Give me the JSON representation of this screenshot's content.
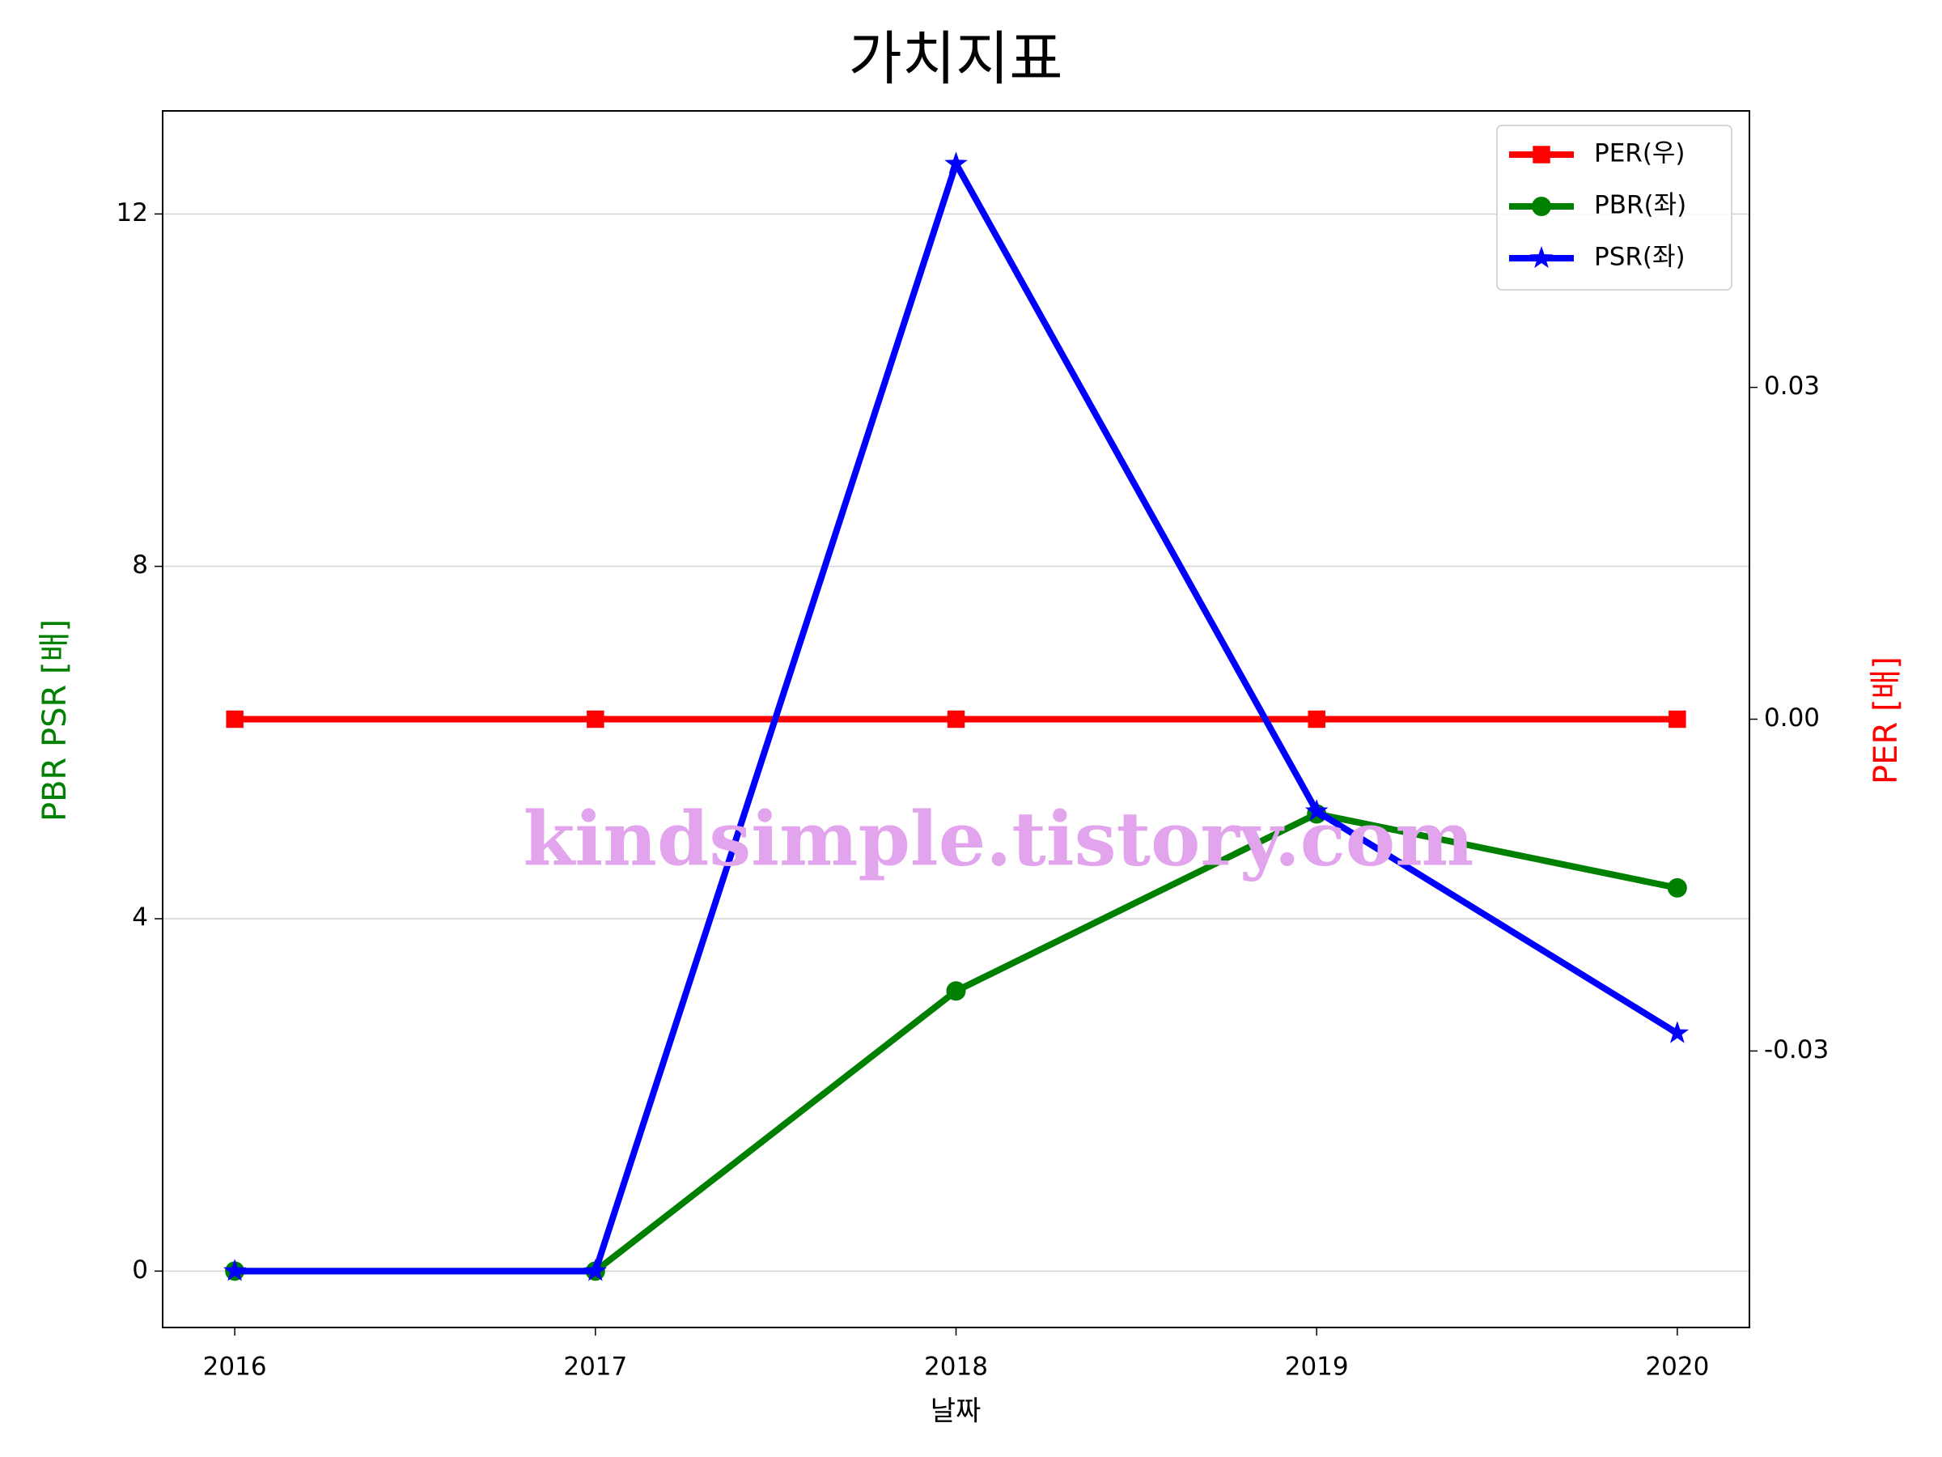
{
  "chart_data": {
    "type": "line",
    "title": "가치지표",
    "x_label": "날짜",
    "y_label": "PBR PSR [배]",
    "y_label_color": "green",
    "y2_label": "PER [배]",
    "y2_label_color": "red",
    "annotation": "kindsimple.tistory.com",
    "annotation_color": "#e2a4ec",
    "x": [
      2016,
      2017,
      2018,
      2019,
      2020
    ],
    "xlim": [
      2015.8,
      2020.2
    ],
    "xticks": [
      2016,
      2017,
      2018,
      2019,
      2020
    ],
    "ylim": [
      -0.64,
      13.17
    ],
    "yticks": [
      0,
      4,
      8,
      12
    ],
    "y2lim": [
      -0.055,
      0.055
    ],
    "y2ticks": [
      -0.03,
      {
        "value": 0,
        "label": "0.00"
      },
      0.03
    ],
    "grid": true,
    "legend": "upper right",
    "series": [
      {
        "name": "PER(우)",
        "color": "red",
        "marker": "square",
        "axis": "y2",
        "values": [
          0,
          0,
          0,
          0,
          0
        ]
      },
      {
        "name": "PBR(좌)",
        "color": "green",
        "marker": "circle",
        "values": [
          0,
          0,
          3.18,
          5.19,
          4.35
        ]
      },
      {
        "name": "PSR(좌)",
        "color": "blue",
        "marker": "star",
        "values": [
          0,
          0,
          12.57,
          5.22,
          2.7
        ]
      }
    ]
  }
}
